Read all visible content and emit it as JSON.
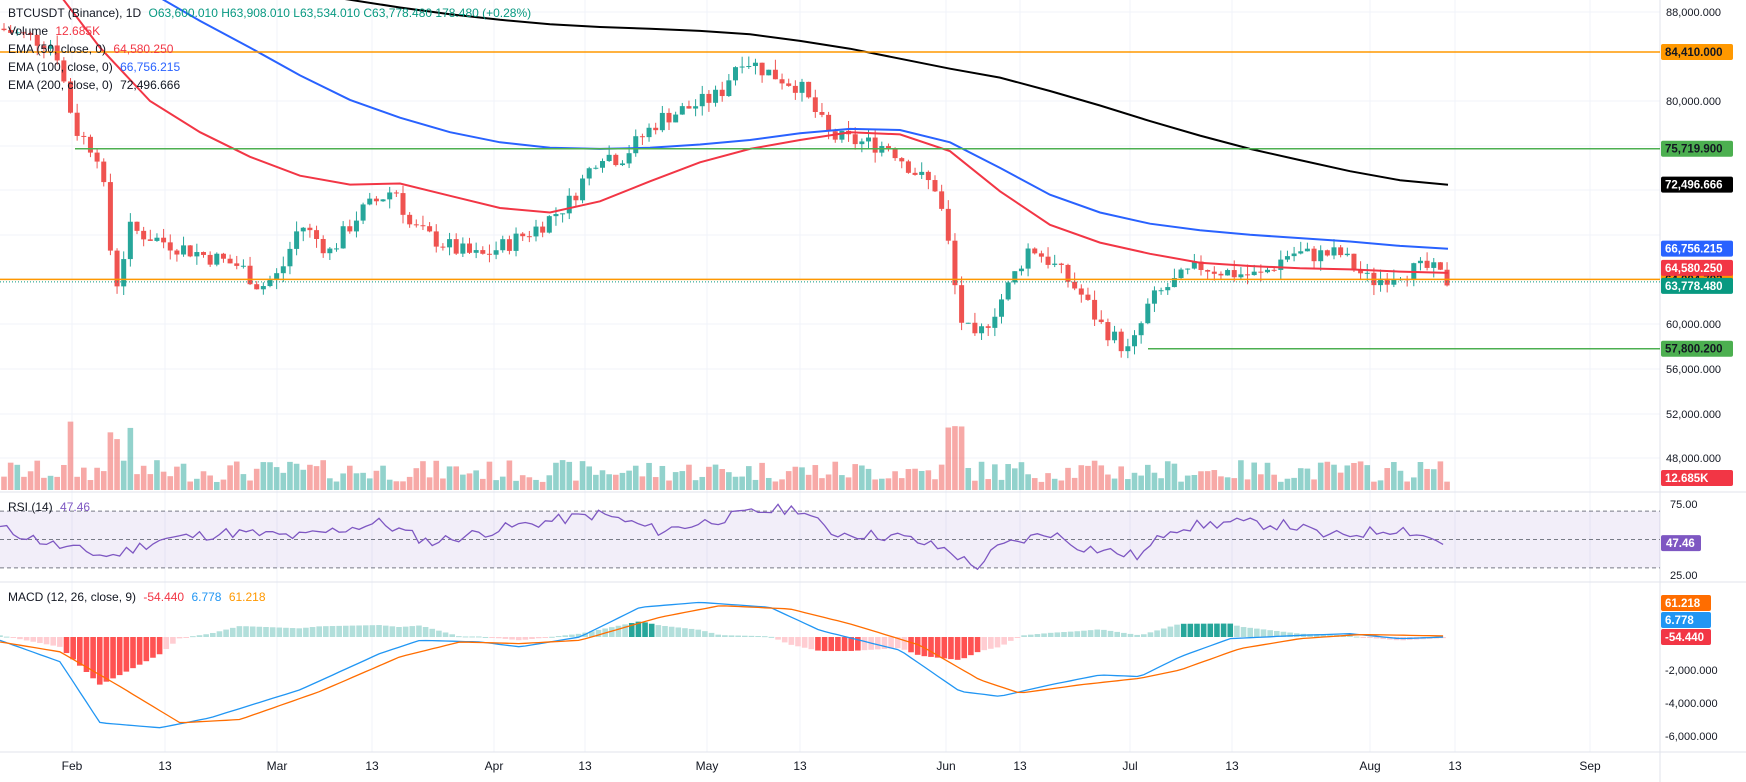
{
  "legend": {
    "symbol": "BTCUSDT (Binance), 1D",
    "ohlc": "O63,600.010 H63,908.010 L63,534.010 C63,778.480 178.480 (+0.28%)",
    "volume_label": "Volume",
    "volume_value": "12.685K",
    "ema50_label": "EMA (50, close, 0)",
    "ema50_value": "64,580.250",
    "ema100_label": "EMA (100, close, 0)",
    "ema100_value": "66,756.215",
    "ema200_label": "EMA (200, close, 0)",
    "ema200_value": "72,496.666",
    "rsi_label": "RSI (14)",
    "rsi_value": "47.46",
    "macd_label": "MACD (12, 26, close, 9)",
    "macd_hist": "-54.440",
    "macd_line": "6.778",
    "macd_signal": "61.218"
  },
  "colors": {
    "up": "#26a69a",
    "down": "#ef5350",
    "ema50": "#f23645",
    "ema100": "#2962ff",
    "ema200": "#000000",
    "resistance": "#ff9800",
    "support": "#4caf50",
    "rsi": "#7e57c2",
    "macd": "#2196f3",
    "signal": "#ff6d00"
  },
  "chart_data": {
    "type": "candlestick",
    "x_ticks": [
      "Feb",
      "13",
      "Mar",
      "13",
      "Apr",
      "13",
      "May",
      "13",
      "Jun",
      "13",
      "Jul",
      "13",
      "Aug",
      "13",
      "Sep"
    ],
    "price_ticks": [
      "88,000.000",
      "80,000.000",
      "60,000.000",
      "56,000.000",
      "52,000.000",
      "48,000.000"
    ],
    "price_range": [
      44000,
      89000
    ],
    "horizontal_levels": [
      {
        "price": 84410,
        "label": "84,410.000",
        "color": "#ff9800"
      },
      {
        "price": 75719.9,
        "label": "75,719.900",
        "color": "#4caf50"
      },
      {
        "price": 64004.793,
        "label": "64,004.793",
        "color": "#ff9800"
      },
      {
        "price": 57800.2,
        "label": "57,800.200",
        "color": "#4caf50"
      }
    ],
    "last_price": {
      "price": 63778.48,
      "label": "63,778.480"
    },
    "ema_labels": [
      {
        "price": 72496.666,
        "label": "72,496.666",
        "color": "#000000"
      },
      {
        "price": 66756.215,
        "label": "66,756.215",
        "color": "#2962ff"
      },
      {
        "price": 64580.25,
        "label": "64,580.250",
        "color": "#f23645"
      }
    ],
    "volume_label": "12.685K",
    "rsi_ticks": [
      "75.00",
      "25.00"
    ],
    "rsi_value_label": "47.46",
    "macd_ticks": [
      "-2,000.000",
      "-4,000.000",
      "-6,000.000"
    ],
    "macd_labels": [
      {
        "label": "61.218",
        "color": "#ff6d00"
      },
      {
        "label": "6.778",
        "color": "#2196f3"
      },
      {
        "label": "-54.440",
        "color": "#f23645"
      }
    ],
    "ema200_path": [
      [
        20,
        94500
      ],
      [
        40,
        94000
      ],
      [
        70,
        93500
      ],
      [
        100,
        93000
      ],
      [
        150,
        92100
      ],
      [
        200,
        91300
      ],
      [
        250,
        90500
      ],
      [
        300,
        89800
      ],
      [
        350,
        89100
      ],
      [
        400,
        88400
      ],
      [
        450,
        87800
      ],
      [
        500,
        87300
      ],
      [
        550,
        86900
      ],
      [
        600,
        86650
      ],
      [
        650,
        86500
      ],
      [
        700,
        86300
      ],
      [
        750,
        86000
      ],
      [
        800,
        85400
      ],
      [
        850,
        84700
      ],
      [
        900,
        83800
      ],
      [
        950,
        82900
      ],
      [
        1000,
        82100
      ],
      [
        1050,
        80900
      ],
      [
        1100,
        79600
      ],
      [
        1150,
        78200
      ],
      [
        1200,
        76900
      ],
      [
        1250,
        75700
      ],
      [
        1300,
        74700
      ],
      [
        1350,
        73700
      ],
      [
        1400,
        72900
      ],
      [
        1448,
        72496
      ]
    ],
    "ema100_path": [
      [
        20,
        96000
      ],
      [
        60,
        94500
      ],
      [
        100,
        92200
      ],
      [
        150,
        89800
      ],
      [
        200,
        87200
      ],
      [
        250,
        84800
      ],
      [
        300,
        82300
      ],
      [
        350,
        80100
      ],
      [
        400,
        78500
      ],
      [
        450,
        77200
      ],
      [
        500,
        76300
      ],
      [
        550,
        75800
      ],
      [
        600,
        75700
      ],
      [
        650,
        75800
      ],
      [
        700,
        76100
      ],
      [
        750,
        76500
      ],
      [
        800,
        77100
      ],
      [
        850,
        77500
      ],
      [
        900,
        77400
      ],
      [
        950,
        76300
      ],
      [
        1000,
        74000
      ],
      [
        1050,
        71600
      ],
      [
        1100,
        70000
      ],
      [
        1150,
        69000
      ],
      [
        1200,
        68400
      ],
      [
        1250,
        68000
      ],
      [
        1300,
        67700
      ],
      [
        1350,
        67400
      ],
      [
        1400,
        67000
      ],
      [
        1448,
        66756
      ]
    ],
    "ema50_path": [
      [
        20,
        93000
      ],
      [
        50,
        90700
      ],
      [
        100,
        84800
      ],
      [
        150,
        80000
      ],
      [
        200,
        77200
      ],
      [
        250,
        75000
      ],
      [
        300,
        73300
      ],
      [
        350,
        72500
      ],
      [
        400,
        72600
      ],
      [
        450,
        71500
      ],
      [
        500,
        70400
      ],
      [
        550,
        70000
      ],
      [
        600,
        71000
      ],
      [
        650,
        72800
      ],
      [
        700,
        74500
      ],
      [
        750,
        75700
      ],
      [
        800,
        76500
      ],
      [
        850,
        77200
      ],
      [
        900,
        77000
      ],
      [
        950,
        75500
      ],
      [
        1000,
        71900
      ],
      [
        1050,
        68900
      ],
      [
        1100,
        67300
      ],
      [
        1150,
        66300
      ],
      [
        1200,
        65500
      ],
      [
        1250,
        65200
      ],
      [
        1300,
        65000
      ],
      [
        1350,
        64900
      ],
      [
        1400,
        64700
      ],
      [
        1448,
        64580
      ]
    ]
  }
}
